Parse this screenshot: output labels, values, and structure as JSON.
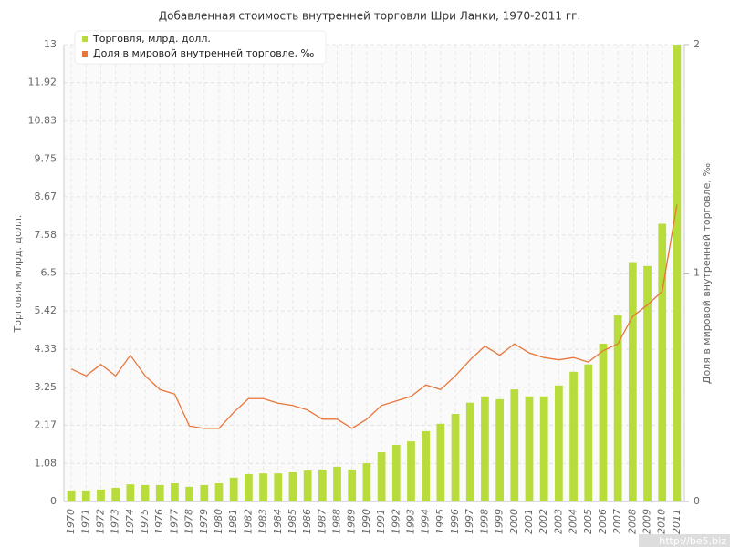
{
  "chart_data": {
    "type": "bar_line",
    "title": "Добавленная стоимость внутренней торговли Шри Ланки, 1970-2011 гг.",
    "y_label": "Торговля, млрд. долл.",
    "y2_label": "Доля в мировой внутренней торговле, ‰",
    "categories": [
      "1970",
      "1971",
      "1972",
      "1973",
      "1974",
      "1975",
      "1976",
      "1977",
      "1978",
      "1979",
      "1980",
      "1981",
      "1982",
      "1983",
      "1984",
      "1985",
      "1986",
      "1987",
      "1988",
      "1989",
      "1990",
      "1991",
      "1992",
      "1993",
      "1994",
      "1995",
      "1996",
      "1997",
      "1998",
      "1999",
      "2000",
      "2001",
      "2002",
      "2003",
      "2004",
      "2005",
      "2006",
      "2007",
      "2008",
      "2009",
      "2010",
      "2011"
    ],
    "series": [
      {
        "name": "Торговля, млрд. долл.",
        "color": "#b8dc3c",
        "kind": "bar",
        "values": [
          0.29,
          0.29,
          0.34,
          0.39,
          0.49,
          0.47,
          0.47,
          0.52,
          0.42,
          0.47,
          0.52,
          0.68,
          0.78,
          0.8,
          0.8,
          0.83,
          0.88,
          0.91,
          0.99,
          0.91,
          1.09,
          1.4,
          1.61,
          1.71,
          2.0,
          2.21,
          2.49,
          2.81,
          2.99,
          2.91,
          3.19,
          2.99,
          2.99,
          3.3,
          3.69,
          3.9,
          4.49,
          5.3,
          6.81,
          6.7,
          7.9,
          13.0
        ]
      },
      {
        "name": "Доля в мировой внутренней торговле, ‰",
        "color": "#e8753a",
        "kind": "line",
        "axis": "y2",
        "values": [
          0.58,
          0.55,
          0.6,
          0.55,
          0.64,
          0.55,
          0.49,
          0.47,
          0.33,
          0.32,
          0.32,
          0.39,
          0.45,
          0.45,
          0.43,
          0.42,
          0.4,
          0.36,
          0.36,
          0.32,
          0.36,
          0.42,
          0.44,
          0.46,
          0.51,
          0.49,
          0.55,
          0.62,
          0.68,
          0.64,
          0.69,
          0.65,
          0.63,
          0.62,
          0.63,
          0.61,
          0.66,
          0.69,
          0.81,
          0.86,
          0.92,
          1.3
        ]
      }
    ],
    "ylim": [
      0,
      13
    ],
    "yticks": [
      0,
      1.08,
      2.17,
      3.25,
      4.33,
      5.42,
      6.5,
      7.58,
      8.67,
      9.75,
      10.83,
      11.92,
      13
    ],
    "y2lim": [
      0,
      2
    ],
    "y2ticks": [
      0,
      1,
      2
    ],
    "grid": true,
    "legend": "top-left",
    "watermark": "http://be5.biz"
  }
}
